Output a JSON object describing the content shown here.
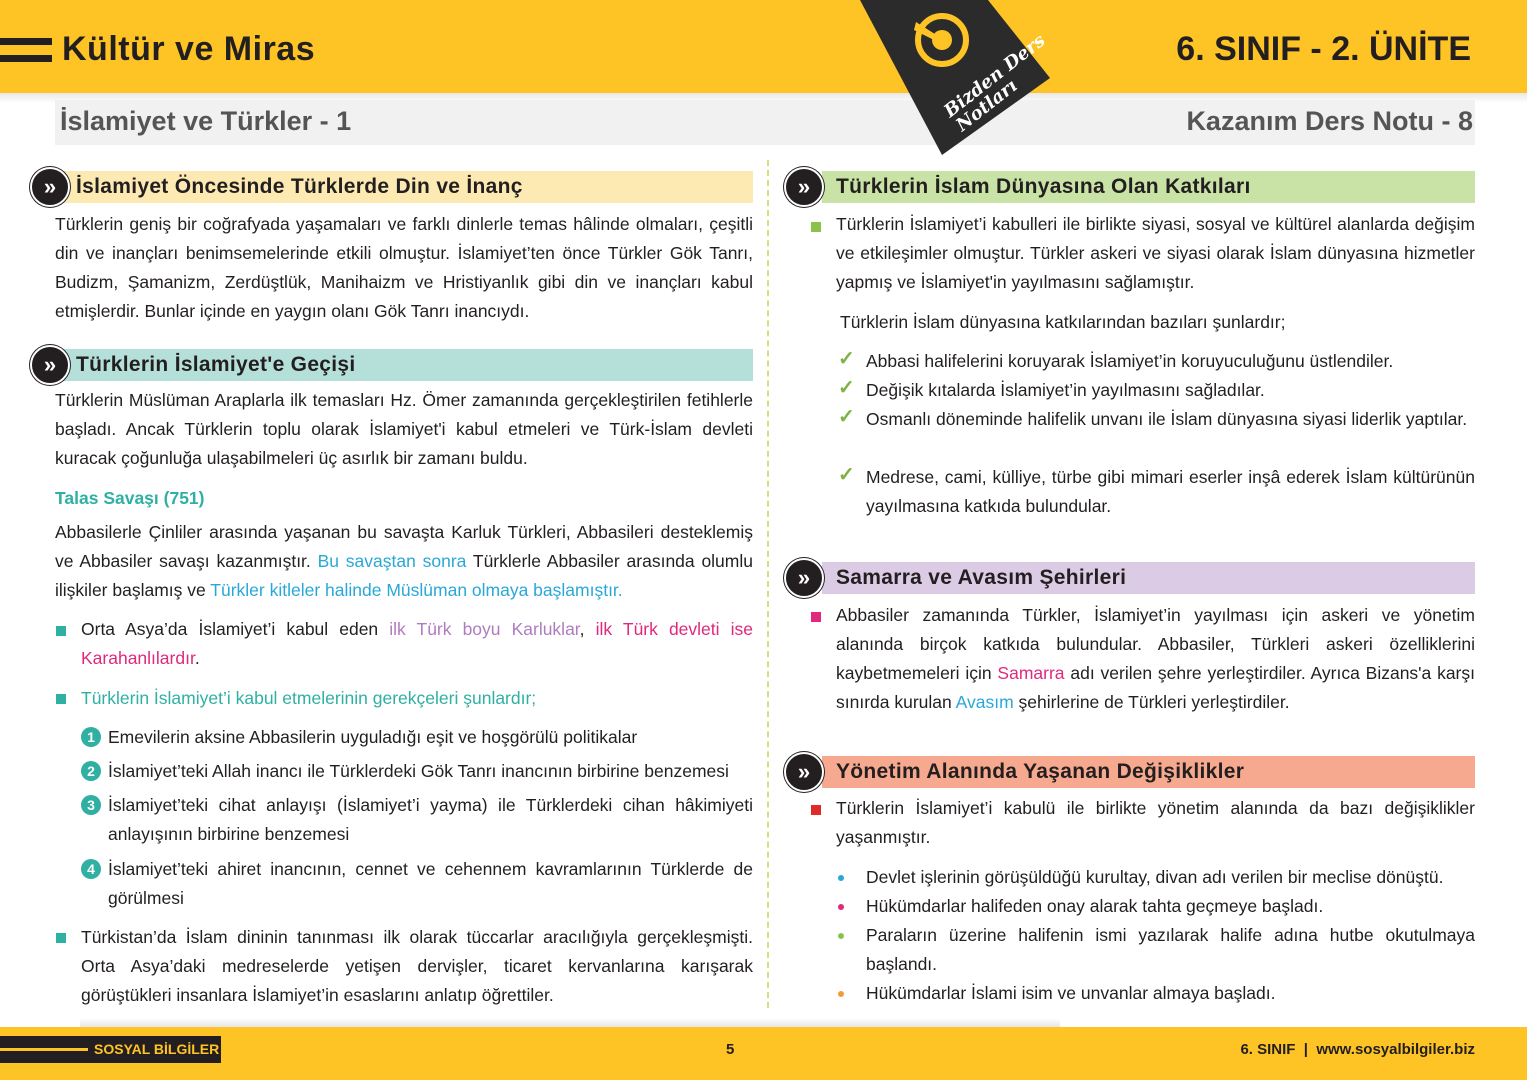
{
  "header": {
    "title": "Kültür ve Miras",
    "unit": "6. SINIF - 2. ÜNİTE",
    "subtitle": "İslamiyet ve Türkler - 1",
    "note": "Kazanım Ders Notu - 8",
    "logo_text": "Bizden Ders Notları"
  },
  "colors": {
    "brand": "#fec425",
    "dark": "#231f20",
    "teal": "#2fb0a3",
    "blue": "#29a8d8",
    "pink": "#e0287d",
    "purple": "#b07cc0"
  },
  "left": {
    "s1": {
      "heading": "İslamiyet Öncesinde Türklerde Din ve İnanç",
      "text": "Türklerin geniş bir coğrafyada yaşamaları ve farklı dinlerle temas hâlinde olmaları, çeşitli din ve inançları benimsemelerinde etkili olmuştur. İslamiyet’ten önce Türkler Gök Tanrı, Budizm, Şamanizm, Zerdüştlük, Manihaizm ve Hristiyanlık gibi din ve inançları kabul etmişlerdir. Bunlar içinde en yaygın olanı Gök Tanrı inancıydı."
    },
    "s2": {
      "heading": "Türklerin İslamiyet'e Geçişi",
      "text": "Türklerin Müslüman Araplarla ilk temasları Hz. Ömer zamanında gerçekleştirilen fetihlerle başladı. Ancak Türklerin toplu olarak İslamiyet'i kabul etmeleri ve Türk-İslam devleti kuracak çoğunluğa ulaşabilmeleri üç asırlık bir zamanı buldu.",
      "talas_title": "Talas Savaşı (751)",
      "talas": {
        "a": "Abbasilerle Çinliler arasında yaşanan bu savaşta Karluk Türkleri, Abbasileri desteklemiş ve Abbasiler savaşı kazanmıştır. ",
        "b": "Bu savaştan sonra",
        "c": " Türklerle Abbasiler arasında olumlu ilişkiler başlamış ve ",
        "d": "Türkler kitleler halinde Müslüman olmaya başlamıştır."
      },
      "bullet1": {
        "a": "Orta Asya’da İslamiyet’i kabul eden ",
        "b": "ilk Türk boyu Karluklar",
        ",": ", ",
        "c": "ilk Türk devleti ise Karahanlılardır",
        "d": "."
      },
      "bullet2": "Türklerin İslamiyet’i kabul etmelerinin gerekçeleri şunlardır;",
      "reasons": [
        {
          "n": "1",
          "text": "Emevilerin aksine Abbasilerin uyguladığı eşit ve hoşgörülü politikalar"
        },
        {
          "n": "2",
          "text": "İslamiyet’teki Allah inancı ile Türklerdeki Gök Tanrı inancının birbirine benzemesi"
        },
        {
          "n": "3",
          "text": "İslamiyet’teki cihat anlayışı (İslamiyet’i yayma) ile Türklerdeki cihan hâkimiyeti anlayışının birbirine benzemesi"
        },
        {
          "n": "4",
          "text": "İslamiyet’teki ahiret inancının, cennet ve cehennem kavramlarının Türklerde de görülmesi"
        }
      ],
      "bullet3": "Türkistan’da İslam dininin tanınması ilk olarak tüccarlar aracılığıyla gerçekleşmişti. Orta Asya’daki medreselerde yetişen dervişler, ticaret kervanlarına karışarak görüştükleri insanlara İslamiyet’in esaslarını anlatıp öğrettiler."
    }
  },
  "right": {
    "s3": {
      "heading": "Türklerin İslam Dünyasına Olan Katkıları",
      "text": "Türklerin İslamiyet’i kabulleri ile birlikte siyasi, sosyal ve kültürel alanlarda değişim ve etkileşimler olmuştur. Türkler askeri ve siyasi olarak İslam dünyasına hizmetler yapmış ve İslamiyet'in yayılmasını sağlamıştır.",
      "intro": "Türklerin İslam dünyasına katkılarından bazıları şunlardır;",
      "items": [
        "Abbasi halifelerini koruyarak İslamiyet’in koruyuculuğunu üstlendiler.",
        "Değişik kıtalarda İslamiyet’in yayılmasını sağladılar.",
        "Osmanlı döneminde halifelik unvanı ile İslam dünyasına siyasi liderlik yaptılar.",
        "Medrese, cami, külliye, türbe gibi mimari eserler inşâ ederek İslam kültürünün yayılmasına katkıda bulundular."
      ]
    },
    "s4": {
      "heading": "Samarra ve Avasım Şehirleri",
      "a": "Abbasiler zamanında Türkler, İslamiyet’in yayılması için askeri ve yönetim alanında birçok katkıda bulundular. Abbasiler, Türkleri askeri özelliklerini kaybetmemeleri için ",
      "b": "Samarra",
      "c": " adı verilen şehre yerleştirdiler. Ayrıca Bizans'a karşı sınırda kurulan ",
      "d": "Avasım",
      "e": " şehirlerine de Türkleri yerleştirdiler."
    },
    "s5": {
      "heading": "Yönetim Alanında Yaşanan Değişiklikler",
      "text": "Türklerin İslamiyet’i kabulü ile birlikte yönetim alanında da bazı değişiklikler yaşanmıştır.",
      "items": [
        "Devlet işlerinin görüşüldüğü kurultay, divan adı verilen bir meclise dönüştü.",
        "Hükümdarlar halifeden onay alarak tahta geçmeye başladı.",
        "Paraların üzerine halifenin ismi yazılarak halife adına hutbe okutulmaya başlandı.",
        "Hükümdarlar İslami isim ve unvanlar almaya başladı."
      ],
      "dot_colors": [
        "#29a8d8",
        "#e0287d",
        "#8bc34a",
        "#f39c35"
      ]
    }
  },
  "footer": {
    "subject": "SOSYAL BİLGİLER",
    "page": "5",
    "right": "6. SINIF  |  www.sosyalbilgiler.biz"
  }
}
